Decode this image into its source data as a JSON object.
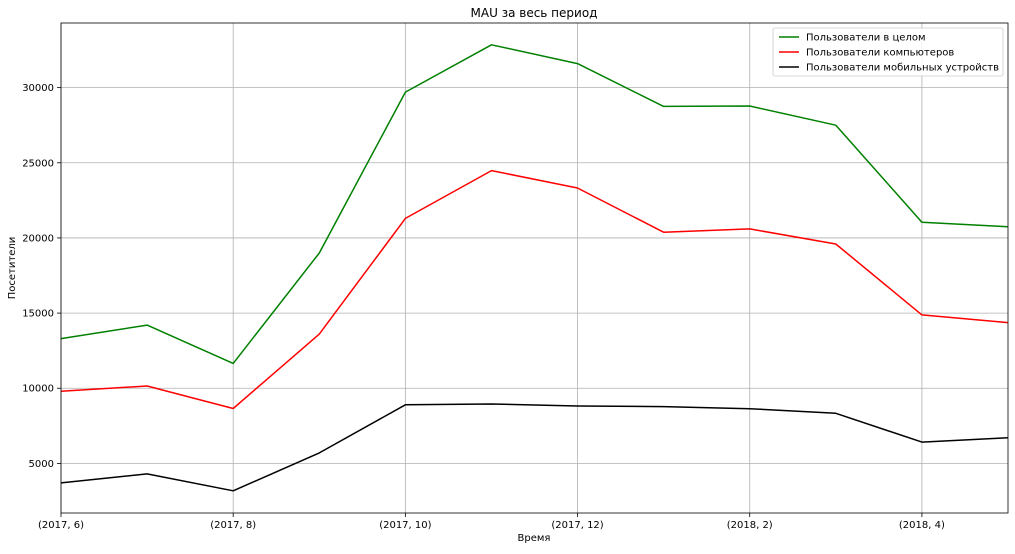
{
  "chart_data": {
    "type": "line",
    "title": "MAU за весь период",
    "xlabel": "Время",
    "ylabel": "Посетители",
    "x_index": [
      0,
      1,
      2,
      3,
      4,
      5,
      6,
      7,
      8,
      9,
      10,
      11
    ],
    "x_tick_positions": [
      0,
      2,
      4,
      6,
      8,
      10
    ],
    "x_tick_labels": [
      "(2017, 6)",
      "(2017, 8)",
      "(2017, 10)",
      "(2017, 12)",
      "(2018, 2)",
      "(2018, 4)"
    ],
    "xlim": [
      0,
      11
    ],
    "ylim": [
      1700,
      34300
    ],
    "y_ticks": [
      5000,
      10000,
      15000,
      20000,
      25000,
      30000
    ],
    "grid": true,
    "legend_position": "top-right",
    "series": [
      {
        "name": "Пользователи в целом",
        "color": "#008000",
        "values": [
          13300,
          14200,
          11650,
          19000,
          29700,
          32850,
          31600,
          28750,
          28780,
          27500,
          21050,
          20750
        ]
      },
      {
        "name": "Пользователи компьютеров",
        "color": "#ff0000",
        "values": [
          9800,
          10150,
          8650,
          13600,
          21300,
          24480,
          23320,
          20380,
          20600,
          19600,
          14880,
          14370
        ]
      },
      {
        "name": "Пользователи мобильных устройств",
        "color": "#000000",
        "values": [
          3700,
          4300,
          3180,
          5700,
          8900,
          8950,
          8820,
          8780,
          8640,
          8330,
          6420,
          6700
        ]
      }
    ]
  }
}
